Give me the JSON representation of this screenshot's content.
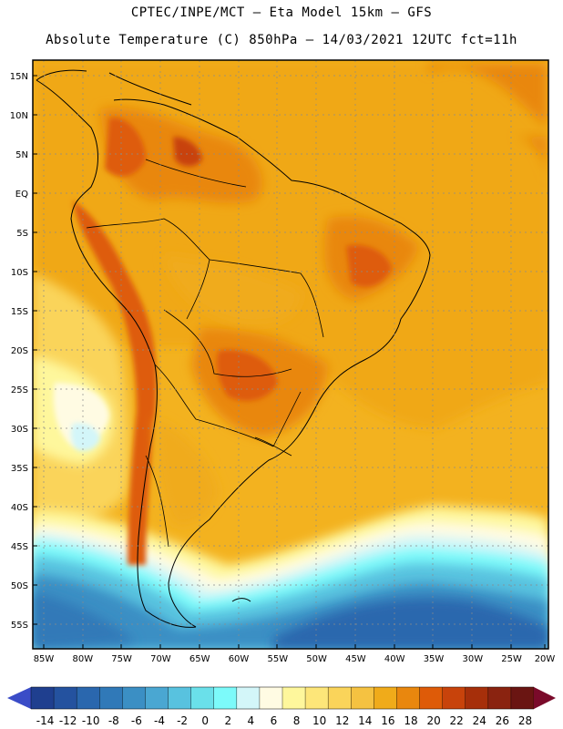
{
  "header": {
    "line1": "CPTEC/INPE/MCT –  Eta Model 15km – GFS",
    "line2": "Absolute Temperature (C) 850hPa – 14/03/2021 12UTC fct=11h"
  },
  "lat_labels": [
    "15N",
    "10N",
    "5N",
    "EQ",
    "5S",
    "10S",
    "15S",
    "20S",
    "25S",
    "30S",
    "35S",
    "40S",
    "45S",
    "50S",
    "55S"
  ],
  "lon_labels": [
    "85W",
    "80W",
    "75W",
    "70W",
    "65W",
    "60W",
    "55W",
    "50W",
    "45W",
    "40W",
    "35W",
    "30W",
    "25W",
    "20W"
  ],
  "colorbar": {
    "colors": [
      "#1f3f8f",
      "#24529f",
      "#2a67ae",
      "#3079b8",
      "#3b8fc4",
      "#4aa7d2",
      "#58c2df",
      "#6ae0ea",
      "#7cfafa",
      "#d3f6f9",
      "#fffbe3",
      "#fef79c",
      "#fde679",
      "#fad45a",
      "#f5c241",
      "#f0ab1a",
      "#e9870e",
      "#de5b08",
      "#c8430b",
      "#a62f0a",
      "#8a2310",
      "#6a1512"
    ],
    "labels": [
      "-14",
      "-12",
      "-10",
      "-8",
      "-6",
      "-4",
      "-2",
      "0",
      "2",
      "4",
      "6",
      "8",
      "10",
      "12",
      "14",
      "16",
      "18",
      "20",
      "22",
      "24",
      "26",
      "28"
    ],
    "under_color": "#3a4cc7",
    "over_color": "#7a0a2a"
  }
}
